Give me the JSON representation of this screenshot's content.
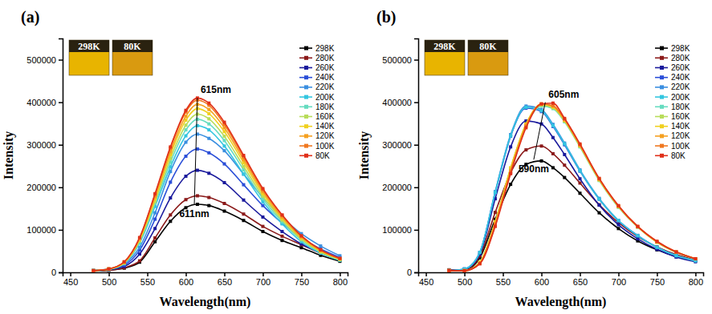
{
  "chart_data": [
    {
      "type": "line",
      "title": "(a)",
      "x_label": "Wavelength(nm)",
      "y_label": "Intensity",
      "xlim": [
        440,
        810
      ],
      "xticks": [
        450,
        500,
        550,
        600,
        650,
        700,
        750,
        800
      ],
      "ylim": [
        0,
        550000
      ],
      "yticks": [
        0,
        100000,
        200000,
        300000,
        400000,
        500000
      ],
      "legend": "upper right",
      "marker": "square",
      "inset_labels": [
        "298K",
        "80K"
      ],
      "annotations": [
        {
          "text": "615nm",
          "x": 615,
          "y": 410000
        },
        {
          "text": "611nm",
          "x": 611,
          "y": 160000
        }
      ],
      "x": [
        480,
        500,
        520,
        540,
        560,
        580,
        600,
        615,
        630,
        650,
        675,
        700,
        725,
        750,
        775,
        800
      ],
      "series": [
        {
          "name": "298K",
          "color": "#000000",
          "values": [
            3000,
            5000,
            10000,
            24000,
            72000,
            120000,
            152000,
            160000,
            157000,
            144000,
            122000,
            96000,
            75000,
            58000,
            40000,
            26000
          ]
        },
        {
          "name": "280K",
          "color": "#8b1a1a",
          "values": [
            4000,
            5000,
            11000,
            27000,
            81000,
            135000,
            171000,
            180000,
            176000,
            162000,
            137000,
            108000,
            85000,
            65000,
            45000,
            29000
          ]
        },
        {
          "name": "260K",
          "color": "#1a1a9c",
          "values": [
            4000,
            6000,
            14000,
            43000,
            103000,
            175000,
            226000,
            240000,
            233000,
            211000,
            170000,
            130000,
            96000,
            67000,
            46000,
            29000
          ]
        },
        {
          "name": "240K",
          "color": "#2b4fd8",
          "values": [
            4000,
            7000,
            17000,
            52000,
            125000,
            212000,
            273000,
            290000,
            281000,
            255000,
            206000,
            157000,
            116000,
            81000,
            55000,
            35000
          ]
        },
        {
          "name": "220K",
          "color": "#3a8fe0",
          "values": [
            5000,
            8000,
            20000,
            59000,
            140000,
            237000,
            306000,
            325000,
            315000,
            286000,
            231000,
            176000,
            130000,
            91000,
            62000,
            39000
          ]
        },
        {
          "name": "200K",
          "color": "#33c6e0",
          "values": [
            3000,
            7000,
            21000,
            69000,
            155000,
            248000,
            321000,
            345000,
            335000,
            297000,
            231000,
            166000,
            114000,
            72000,
            45000,
            28000
          ]
        },
        {
          "name": "180K",
          "color": "#66dcc0",
          "values": [
            4000,
            7000,
            22000,
            72000,
            162000,
            259000,
            335000,
            360000,
            349000,
            310000,
            241000,
            173000,
            119000,
            76000,
            47000,
            29000
          ]
        },
        {
          "name": "160K",
          "color": "#b8dc5a",
          "values": [
            4000,
            7000,
            22000,
            74000,
            167000,
            268000,
            346000,
            372000,
            361000,
            320000,
            249000,
            179000,
            123000,
            78000,
            48000,
            30000
          ]
        },
        {
          "name": "140K",
          "color": "#f0d020",
          "values": [
            4000,
            8000,
            23000,
            77000,
            173000,
            277000,
            358000,
            385000,
            373000,
            331000,
            258000,
            185000,
            127000,
            81000,
            50000,
            31000
          ]
        },
        {
          "name": "120K",
          "color": "#f5a020",
          "values": [
            4000,
            8000,
            24000,
            79000,
            178000,
            284000,
            367000,
            395000,
            383000,
            340000,
            265000,
            190000,
            130000,
            83000,
            51000,
            32000
          ]
        },
        {
          "name": "100K",
          "color": "#f07820",
          "values": [
            4000,
            8000,
            24000,
            81000,
            182000,
            292000,
            377000,
            405000,
            393000,
            348000,
            271000,
            194000,
            134000,
            85000,
            53000,
            32000
          ]
        },
        {
          "name": "80K",
          "color": "#e0301a",
          "values": [
            4000,
            8000,
            25000,
            82000,
            185000,
            295000,
            381000,
            410000,
            398000,
            353000,
            275000,
            197000,
            135000,
            86000,
            53000,
            33000
          ]
        }
      ]
    },
    {
      "type": "line",
      "title": "(b)",
      "x_label": "Wavelength(nm)",
      "y_label": "Intensity",
      "xlim": [
        440,
        810
      ],
      "xticks": [
        450,
        500,
        550,
        600,
        650,
        700,
        750,
        800
      ],
      "ylim": [
        0,
        550000
      ],
      "yticks": [
        0,
        100000,
        200000,
        300000,
        400000,
        500000
      ],
      "legend": "upper right",
      "marker": "square",
      "inset_labels": [
        "298K",
        "80K"
      ],
      "annotations": [
        {
          "text": "605nm",
          "x": 605,
          "y": 400000
        },
        {
          "text": "590nm",
          "x": 590,
          "y": 265000
        }
      ],
      "x": [
        480,
        500,
        520,
        540,
        560,
        580,
        600,
        615,
        630,
        650,
        675,
        700,
        725,
        750,
        775,
        800
      ],
      "series": [
        {
          "name": "298K",
          "color": "#000000",
          "values": [
            5000,
            5000,
            34000,
            125000,
            207000,
            254000,
            262000,
            246000,
            223000,
            186000,
            140000,
            103000,
            74000,
            53000,
            37000,
            27000
          ]
        },
        {
          "name": "280K",
          "color": "#8b1a1a",
          "values": [
            6000,
            6000,
            39000,
            141000,
            234000,
            288000,
            297000,
            279000,
            252000,
            210000,
            159000,
            117000,
            84000,
            60000,
            42000,
            30000
          ]
        },
        {
          "name": "260K",
          "color": "#1a1a9c",
          "values": [
            4000,
            7000,
            43000,
            173000,
            295000,
            356000,
            349000,
            317000,
            277000,
            220000,
            158000,
            112000,
            79000,
            54000,
            36000,
            25000
          ]
        },
        {
          "name": "240K",
          "color": "#2b4fd8",
          "values": [
            4000,
            8000,
            47000,
            187000,
            320000,
            386000,
            378000,
            343000,
            300000,
            238000,
            172000,
            121000,
            86000,
            59000,
            39000,
            27000
          ]
        },
        {
          "name": "220K",
          "color": "#3a8fe0",
          "values": [
            4000,
            8000,
            47000,
            190000,
            324000,
            391000,
            383000,
            348000,
            304000,
            241000,
            174000,
            122000,
            87000,
            59000,
            40000,
            28000
          ]
        },
        {
          "name": "200K",
          "color": "#33c6e0",
          "values": [
            4000,
            8000,
            47000,
            188000,
            321000,
            388000,
            380000,
            345000,
            302000,
            239000,
            172000,
            122000,
            86000,
            59000,
            39000,
            27000
          ]
        },
        {
          "name": "180K",
          "color": "#66dcc0",
          "values": [
            4000,
            4000,
            24000,
            118000,
            244000,
            346000,
            391000,
            385000,
            354000,
            295000,
            216000,
            153000,
            106000,
            71000,
            47000,
            31000
          ]
        },
        {
          "name": "160K",
          "color": "#b8dc5a",
          "values": [
            4000,
            4000,
            24000,
            119000,
            245000,
            348000,
            393000,
            387000,
            356000,
            296000,
            217000,
            154000,
            107000,
            71000,
            47000,
            32000
          ]
        },
        {
          "name": "140K",
          "color": "#f0d020",
          "values": [
            4000,
            4000,
            24000,
            119000,
            246000,
            349000,
            395000,
            389000,
            357000,
            298000,
            218000,
            155000,
            107000,
            71000,
            48000,
            32000
          ]
        },
        {
          "name": "120K",
          "color": "#f5a020",
          "values": [
            4000,
            4000,
            22000,
            115000,
            240000,
            346000,
            396000,
            391000,
            359000,
            299000,
            219000,
            155000,
            107000,
            72000,
            48000,
            32000
          ]
        },
        {
          "name": "100K",
          "color": "#f07820",
          "values": [
            4000,
            4000,
            21000,
            112000,
            236000,
            343000,
            396000,
            392000,
            360000,
            300000,
            220000,
            156000,
            108000,
            72000,
            48000,
            32000
          ]
        },
        {
          "name": "80K",
          "color": "#e0301a",
          "values": [
            4000,
            4000,
            20000,
            108000,
            232000,
            340000,
            396000,
            398000,
            362000,
            302000,
            221000,
            157000,
            108000,
            73000,
            48000,
            32000
          ]
        }
      ]
    }
  ]
}
